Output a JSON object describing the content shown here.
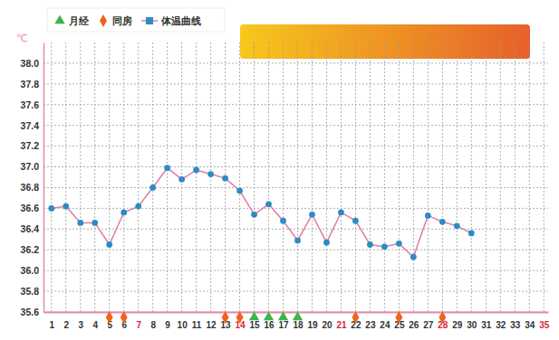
{
  "chart_data": {
    "type": "line",
    "y_label": "℃",
    "x": [
      1,
      2,
      3,
      4,
      5,
      6,
      7,
      8,
      9,
      10,
      11,
      12,
      13,
      14,
      15,
      16,
      17,
      18,
      19,
      20,
      21,
      22,
      23,
      24,
      25,
      26,
      27,
      28,
      29,
      30
    ],
    "series": [
      {
        "name": "体温曲线",
        "color": "#e07aa6",
        "marker": "circle",
        "values": [
          36.6,
          36.62,
          36.46,
          36.46,
          36.25,
          36.56,
          36.62,
          36.8,
          36.99,
          36.88,
          36.97,
          36.93,
          36.89,
          36.77,
          36.54,
          36.64,
          36.48,
          36.29,
          36.54,
          36.27,
          36.56,
          36.48,
          36.25,
          36.23,
          36.26,
          36.13,
          36.53,
          36.47,
          36.43,
          36.36
        ]
      }
    ],
    "markers": [
      {
        "name": "月经",
        "color": "#3db54a",
        "marker": "triangle",
        "x": [
          15,
          16,
          17,
          18
        ]
      },
      {
        "name": "同房",
        "color": "#f0641e",
        "marker": "diamond",
        "x": [
          5,
          6,
          13,
          14,
          22,
          25,
          28
        ]
      }
    ],
    "xlim": [
      0.45,
      35.3
    ],
    "xticks": [
      1,
      2,
      3,
      4,
      5,
      6,
      7,
      8,
      9,
      10,
      11,
      12,
      13,
      14,
      15,
      16,
      17,
      18,
      19,
      20,
      21,
      22,
      23,
      24,
      25,
      26,
      27,
      28,
      29,
      30,
      31,
      32,
      33,
      34,
      35
    ],
    "ylim": [
      35.6,
      38.2
    ],
    "yticks": [
      35.6,
      35.8,
      {
        "value": 36,
        "label": "36.0"
      },
      36.2,
      36.4,
      36.6,
      36.8,
      {
        "value": 37,
        "label": "37.0"
      },
      37.2,
      37.4,
      37.6,
      37.8,
      {
        "value": 38,
        "label": "38.0"
      }
    ],
    "grid": true
  }
}
